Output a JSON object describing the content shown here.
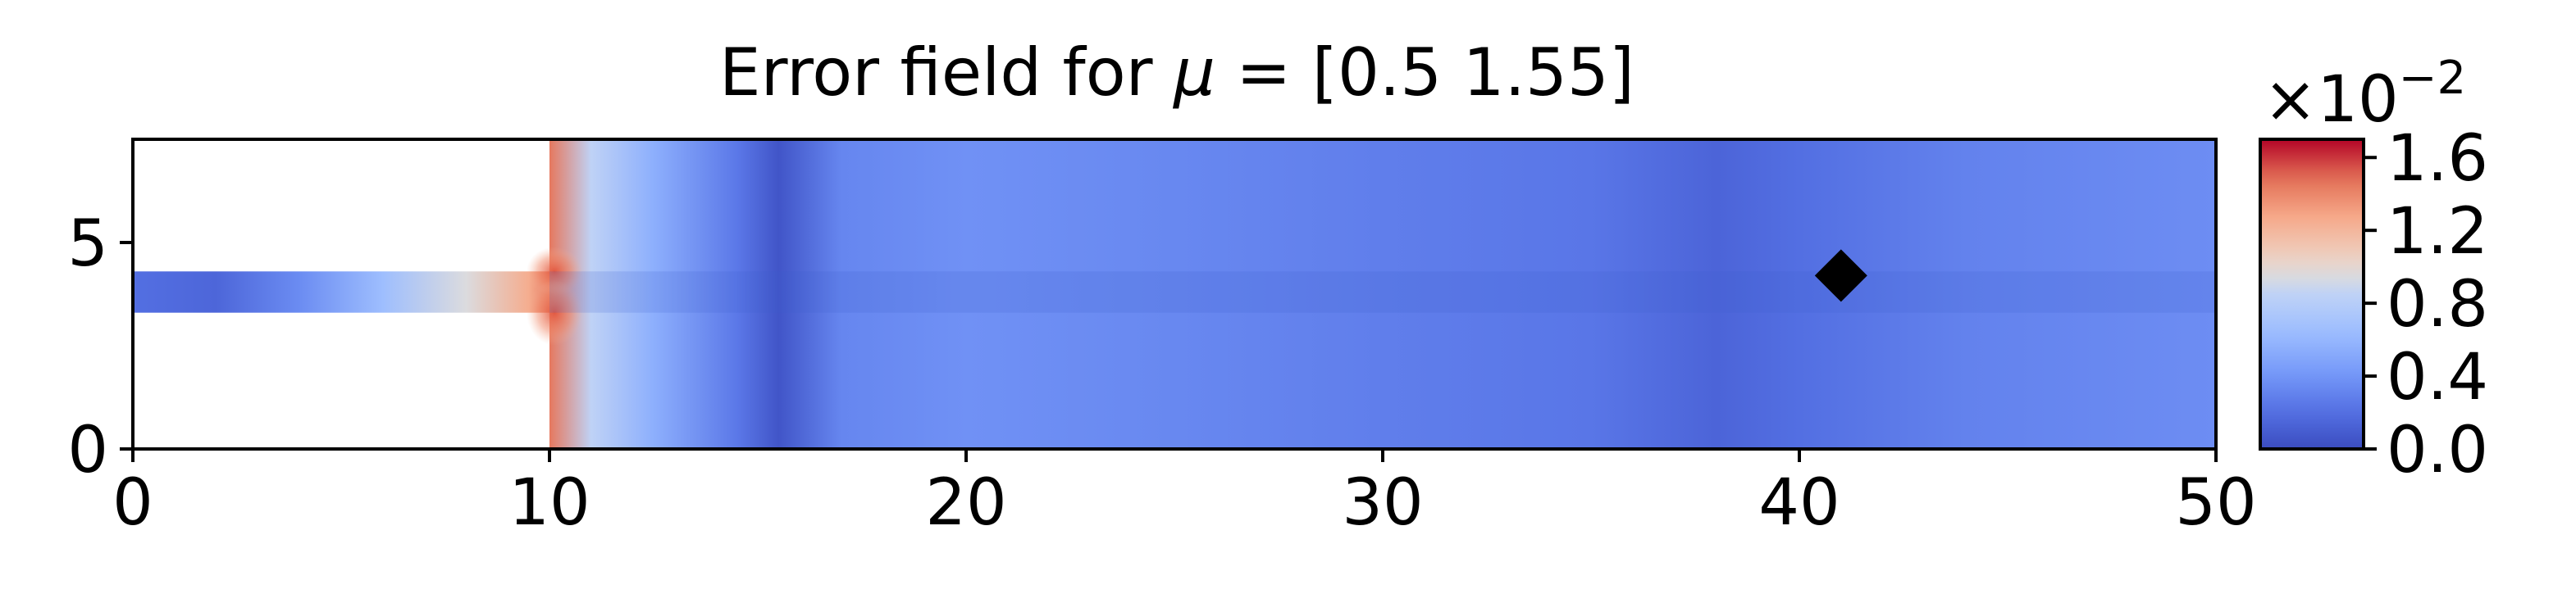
{
  "chart_data": {
    "type": "heatmap",
    "title_prefix": "Error field for ",
    "title_symbol": "μ",
    "title_suffix": " = [0.5  1.55]",
    "xlabel": "",
    "ylabel": "",
    "xlim": [
      0,
      50
    ],
    "ylim": [
      0,
      7.5
    ],
    "x_ticks": [
      0,
      10,
      20,
      30,
      40,
      50
    ],
    "x_tick_labels": [
      "0",
      "10",
      "20",
      "30",
      "40",
      "50"
    ],
    "y_ticks": [
      0,
      5
    ],
    "y_tick_labels": [
      "0",
      "5"
    ],
    "domain": {
      "channel_x": [
        0,
        10
      ],
      "channel_y": [
        3.3,
        4.3
      ],
      "chamber_x": [
        10,
        50
      ],
      "chamber_y": [
        0,
        7.5
      ]
    },
    "error_profile_along_x": [
      {
        "x": 0,
        "e": 0.2
      },
      {
        "x": 2,
        "e": 0.15
      },
      {
        "x": 4,
        "e": 0.35
      },
      {
        "x": 6,
        "e": 0.65
      },
      {
        "x": 8,
        "e": 0.95
      },
      {
        "x": 9.5,
        "e": 1.25
      },
      {
        "x": 10,
        "e": 1.45
      },
      {
        "x": 11,
        "e": 0.85
      },
      {
        "x": 12.5,
        "e": 0.55
      },
      {
        "x": 14.5,
        "e": 0.25
      },
      {
        "x": 15.5,
        "e": 0.05
      },
      {
        "x": 17,
        "e": 0.32
      },
      {
        "x": 20,
        "e": 0.38
      },
      {
        "x": 25,
        "e": 0.33
      },
      {
        "x": 30,
        "e": 0.28
      },
      {
        "x": 35,
        "e": 0.24
      },
      {
        "x": 38,
        "e": 0.14
      },
      {
        "x": 40,
        "e": 0.2
      },
      {
        "x": 44,
        "e": 0.3
      },
      {
        "x": 50,
        "e": 0.36
      }
    ],
    "marker": {
      "shape": "diamond",
      "x": 41,
      "y": 4.2,
      "color": "#000000"
    },
    "colorbar": {
      "colormap": "coolwarm",
      "range": [
        0.0,
        1.7
      ],
      "ticks": [
        0.0,
        0.4,
        0.8,
        1.2,
        1.6
      ],
      "tick_labels": [
        "0.0",
        "0.4",
        "0.8",
        "1.2",
        "1.6"
      ],
      "multiplier_base": "×10",
      "multiplier_exponent": "−2"
    },
    "grid": false
  }
}
